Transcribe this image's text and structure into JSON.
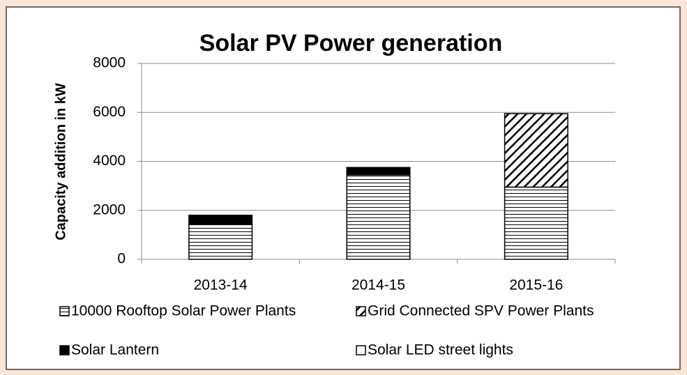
{
  "chart_data": {
    "type": "stacked_bar",
    "title": "Solar PV Power generation",
    "y_label": "Capacity addition  in kW",
    "categories": [
      "2013-14",
      "2014-15",
      "2015-16"
    ],
    "series": [
      {
        "name": "10000 Rooftop Solar Power Plants",
        "color": "#000000",
        "pattern": "horizontal",
        "values": [
          1450,
          3450,
          2950
        ]
      },
      {
        "name": "Grid Connected SPV Power Plants",
        "color": "#000000",
        "pattern": "diagonal",
        "values": [
          0,
          0,
          3000
        ]
      },
      {
        "name": "Solar Lantern",
        "color": "#000000",
        "pattern": "solid",
        "values": [
          350,
          300,
          0
        ]
      },
      {
        "name": "Solar LED street lights",
        "color": "#ffffff",
        "pattern": "solid",
        "values": [
          0,
          0,
          0
        ]
      }
    ],
    "ylim": [
      0,
      8000
    ],
    "yticks": [
      0,
      2000,
      4000,
      6000,
      8000
    ],
    "grid": true,
    "legend": "bottom"
  }
}
